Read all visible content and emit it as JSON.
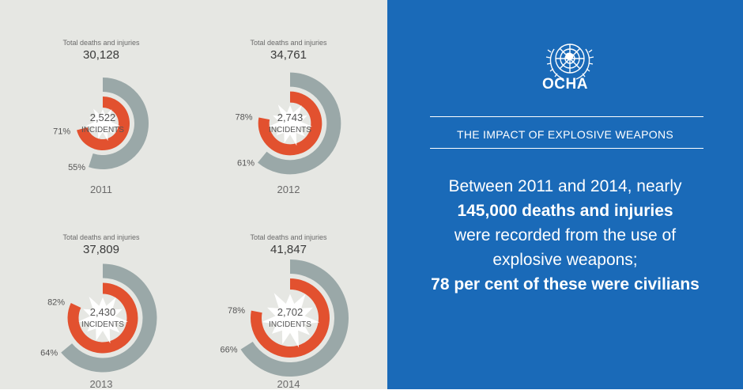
{
  "brand": {
    "name": "OCHA",
    "colors": {
      "background_right": "#1a6ab8",
      "background_left": "#e6e7e3",
      "civilian_arc": "#e2512f",
      "total_arc": "#9aa8a8"
    }
  },
  "headline": "THE IMPACT OF EXPLOSIVE WEAPONS",
  "body_text": {
    "line1": "Between 2011 and 2014, nearly",
    "line2": "145,000 deaths and injuries",
    "line3": "were recorded from the use of",
    "line4": "explosive weapons;",
    "line5": "78 per cent of these were civilians"
  },
  "chart_data": [
    {
      "type": "pie",
      "year": "2011",
      "total_caption": "Total deaths and injuries",
      "total": "30,128",
      "total_value": 30128,
      "incidents": "2,522",
      "incidents_label": "INCIDENTS",
      "outer_pct_label": "55%",
      "outer_pct": 55,
      "inner_pct_label": "71%",
      "inner_pct": 71
    },
    {
      "type": "pie",
      "year": "2012",
      "total_caption": "Total deaths and injuries",
      "total": "34,761",
      "total_value": 34761,
      "incidents": "2,743",
      "incidents_label": "INCIDENTS",
      "outer_pct_label": "61%",
      "outer_pct": 61,
      "inner_pct_label": "78%",
      "inner_pct": 78
    },
    {
      "type": "pie",
      "year": "2013",
      "total_caption": "Total deaths and injuries",
      "total": "37,809",
      "total_value": 37809,
      "incidents": "2,430",
      "incidents_label": "INCIDENTS",
      "outer_pct_label": "64%",
      "outer_pct": 64,
      "inner_pct_label": "82%",
      "inner_pct": 82
    },
    {
      "type": "pie",
      "year": "2014",
      "total_caption": "Total deaths and injuries",
      "total": "41,847",
      "total_value": 41847,
      "incidents": "2,702",
      "incidents_label": "INCIDENTS",
      "outer_pct_label": "66%",
      "outer_pct": 66,
      "inner_pct_label": "78%",
      "inner_pct": 78
    }
  ]
}
